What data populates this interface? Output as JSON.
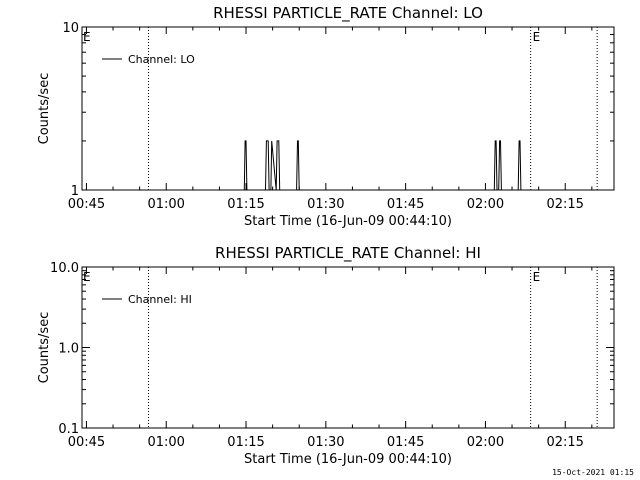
{
  "footer_timestamp": "15-Oct-2021 01:15",
  "chart_data": [
    {
      "type": "line",
      "title": "RHESSI PARTICLE_RATE Channel: LO",
      "xlabel": "Start Time (16-Jun-09 00:44:10)",
      "ylabel": "Counts/sec",
      "yscale": "log",
      "ylim": [
        1,
        10
      ],
      "xlim": [
        "00:44:10",
        "02:24:10"
      ],
      "x_ticks": [
        "00:45",
        "01:00",
        "01:15",
        "01:30",
        "01:45",
        "02:00",
        "02:15"
      ],
      "y_ticks": [
        "1",
        "10"
      ],
      "legend": "top-left",
      "series": [
        {
          "name": "Channel: LO",
          "color": "#000000",
          "x": [
            "01:14:40",
            "01:14:50",
            "01:15:00",
            "01:15:10",
            "01:18:40",
            "01:18:50",
            "01:19:10",
            "01:19:20",
            "01:19:40",
            "01:19:50",
            "01:20:40",
            "01:20:50",
            "01:21:10",
            "01:21:20",
            "01:24:30",
            "01:24:40",
            "01:24:50",
            "01:25:00",
            "02:01:40",
            "02:01:50",
            "02:02:00",
            "02:02:10",
            "02:02:30",
            "02:02:40",
            "02:02:50",
            "02:03:00",
            "02:06:10",
            "02:06:20",
            "02:06:30",
            "02:06:40"
          ],
          "values": [
            1,
            2,
            2,
            1,
            1,
            2,
            2,
            1,
            1,
            2,
            1,
            2,
            2,
            1,
            1,
            2,
            2,
            1,
            1,
            2,
            2,
            1,
            1,
            2,
            2,
            1,
            1,
            2,
            2,
            1
          ]
        }
      ],
      "vlines": [
        {
          "x": "00:56:40",
          "style": "dotted",
          "label": ""
        },
        {
          "x": "02:08:30",
          "style": "dotted",
          "label": "E"
        },
        {
          "x": "02:21:00",
          "style": "dotted",
          "label": ""
        }
      ],
      "left_edge_label": "E"
    },
    {
      "type": "line",
      "title": "RHESSI PARTICLE_RATE Channel: HI",
      "xlabel": "Start Time (16-Jun-09 00:44:10)",
      "ylabel": "Counts/sec",
      "yscale": "log",
      "ylim": [
        0.1,
        10.0
      ],
      "xlim": [
        "00:44:10",
        "02:24:10"
      ],
      "x_ticks": [
        "00:45",
        "01:00",
        "01:15",
        "01:30",
        "01:45",
        "02:00",
        "02:15"
      ],
      "y_ticks": [
        "0.1",
        "1.0",
        "10.0"
      ],
      "legend": "top-left",
      "series": [
        {
          "name": "Channel: HI",
          "color": "#000000",
          "x": [],
          "values": []
        }
      ],
      "vlines": [
        {
          "x": "00:56:40",
          "style": "dotted",
          "label": ""
        },
        {
          "x": "02:08:30",
          "style": "dotted",
          "label": "E"
        },
        {
          "x": "02:21:00",
          "style": "dotted",
          "label": ""
        }
      ],
      "left_edge_label": "E"
    }
  ]
}
